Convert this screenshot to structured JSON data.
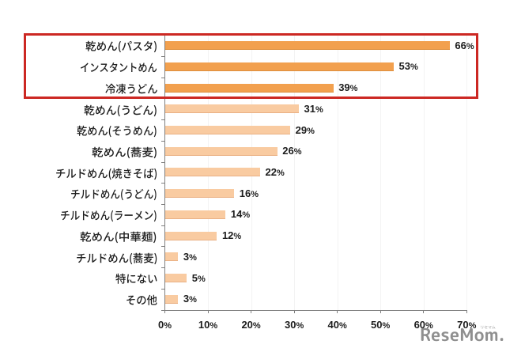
{
  "chart_data": {
    "type": "bar",
    "orientation": "horizontal",
    "categories": [
      "乾めん(パスタ)",
      "インスタントめん",
      "冷凍うどん",
      "乾めん(うどん)",
      "乾めん(そうめん)",
      "乾めん(蕎麦)",
      "チルドめん(焼きそば)",
      "チルドめん(うどん)",
      "チルドめん(ラーメン)",
      "乾めん(中華麺)",
      "チルドめん(蕎麦)",
      "特にない",
      "その他"
    ],
    "values": [
      66,
      53,
      39,
      31,
      29,
      26,
      22,
      16,
      14,
      12,
      3,
      5,
      3
    ],
    "value_labels": [
      "66%",
      "53%",
      "39%",
      "31%",
      "29%",
      "26%",
      "22%",
      "16%",
      "14%",
      "12%",
      "3%",
      "5%",
      "3%"
    ],
    "x_tick_labels": [
      "0%",
      "10%",
      "20%",
      "30%",
      "40%",
      "50%",
      "60%",
      "70%"
    ],
    "xlim": [
      0,
      70
    ],
    "grid": "on",
    "legend_position": "none",
    "highlighted_categories": [
      "乾めん(パスタ)",
      "インスタントめん",
      "冷凍うどん"
    ],
    "colors": {
      "bar_highlight": "#f2a04e",
      "bar_normal": "#f9cba1",
      "highlight_box": "#cc2823",
      "axis": "#7f7f7f",
      "gridline": "#f3f3f3",
      "text": "#1c1c1c"
    }
  },
  "watermark": {
    "text": "ReseMom.",
    "kana": "リセマム",
    "color": "#8a8a8a"
  }
}
